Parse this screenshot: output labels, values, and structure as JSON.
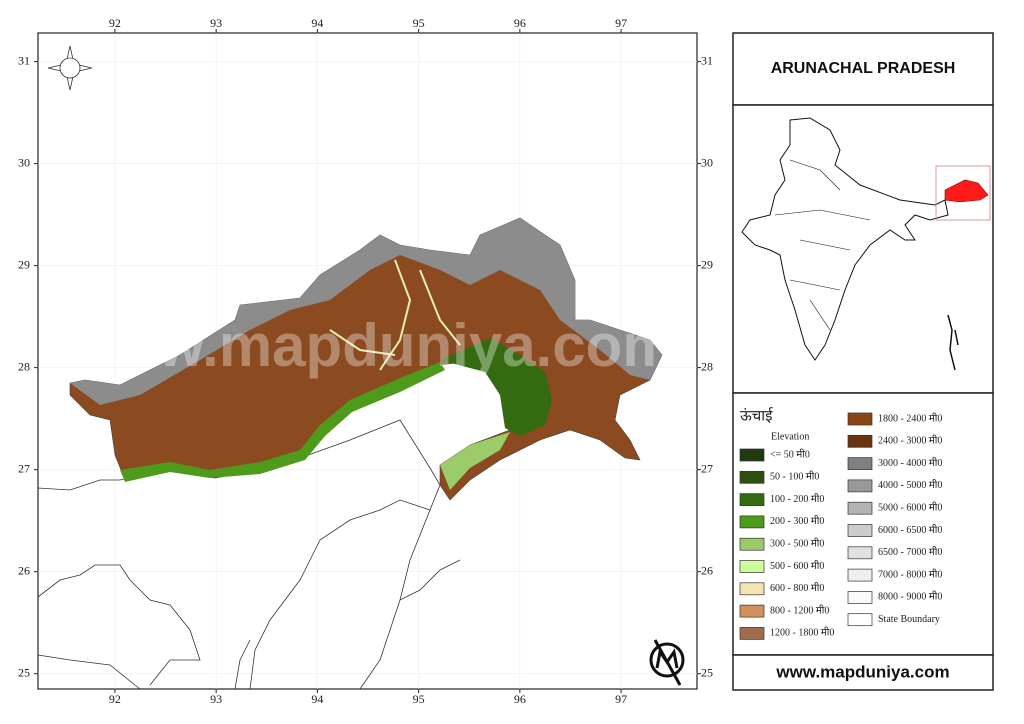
{
  "title": "ARUNACHAL PRADESH",
  "website": "www.mapduniya.com",
  "watermark": "www.mapduniya.com",
  "map": {
    "xlim": [
      91.24,
      97.75
    ],
    "ylim": [
      24.85,
      31.28
    ],
    "xticks": [
      92,
      93,
      94,
      95,
      96,
      97
    ],
    "yticks": [
      25,
      26,
      27,
      28,
      29,
      30,
      31
    ]
  },
  "legend": {
    "title": "ऊंचाई",
    "subtitle": "Elevation",
    "items": [
      {
        "label": "<= 50 मी0",
        "color": "#1e3a10"
      },
      {
        "label": "50 - 100 मी0",
        "color": "#2d5010"
      },
      {
        "label": "100 - 200 मी0",
        "color": "#356b10"
      },
      {
        "label": "200 - 300 मी0",
        "color": "#4e9a1a"
      },
      {
        "label": "300 - 500 मी0",
        "color": "#9ccc6a"
      },
      {
        "label": "500 - 600 मी0",
        "color": "#ccff99"
      },
      {
        "label": "600 - 800 मी0",
        "color": "#f5e3b0"
      },
      {
        "label": "800 - 1200 मी0",
        "color": "#d4905a"
      },
      {
        "label": "1200 - 1800 मी0",
        "color": "#a06c50"
      },
      {
        "label": "1800 - 2400 मी0",
        "color": "#8b4513"
      },
      {
        "label": "2400 - 3000 मी0",
        "color": "#6b3410"
      },
      {
        "label": "3000 - 4000 मी0",
        "color": "#808080"
      },
      {
        "label": "4000 - 5000 मी0",
        "color": "#999999"
      },
      {
        "label": "5000 - 6000 मी0",
        "color": "#b3b3b3"
      },
      {
        "label": "6000 - 6500 मी0",
        "color": "#cccccc"
      },
      {
        "label": "6500 - 7000 मी0",
        "color": "#e0e0e0"
      },
      {
        "label": "7000 - 8000 मी0",
        "color": "#eeeeee"
      },
      {
        "label": "8000 - 9000 मी0",
        "color": "#fafafa"
      },
      {
        "label": "State Boundary",
        "color": "#ffffff"
      }
    ]
  }
}
